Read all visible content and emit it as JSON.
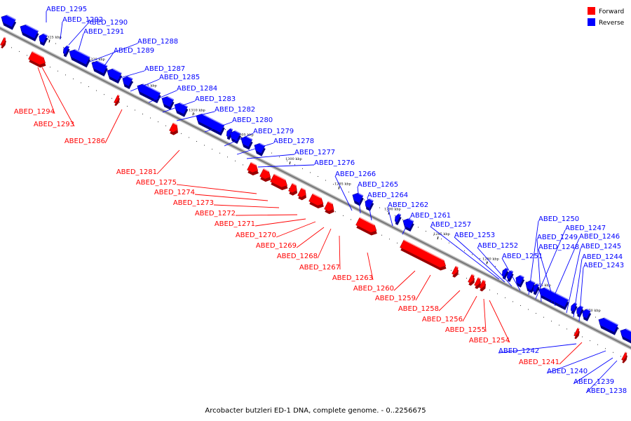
{
  "caption": "Arcobacter butzleri ED-1 DNA, complete genome. - 0..2256675",
  "legend": [
    {
      "label": "Forward",
      "color": "#ff0000"
    },
    {
      "label": "Reverse",
      "color": "#0000ff"
    }
  ],
  "colors": {
    "forward": "#ff0000",
    "reverse": "#0000ff",
    "backbone": "#777777",
    "tick": "#000000"
  },
  "ticks": [
    "1325 kbp",
    "1320 kbp",
    "1315 kbp",
    "1310 kbp",
    "1305 kbp",
    "1300 kbp",
    "1295 kbp",
    "1290 kbp",
    "1285 kbp",
    "1280 kbp",
    "1275 kbp",
    "1270 kbp"
  ],
  "reverse_labels": [
    "ABED_1295",
    "ABED_1292",
    "ABED_1290",
    "ABED_1291",
    "ABED_1288",
    "ABED_1289",
    "ABED_1287",
    "ABED_1285",
    "ABED_1284",
    "ABED_1283",
    "ABED_1282",
    "ABED_1280",
    "ABED_1279",
    "ABED_1278",
    "ABED_1277",
    "ABED_1276",
    "ABED_1266",
    "ABED_1265",
    "ABED_1264",
    "ABED_1262",
    "ABED_1261",
    "ABED_1257",
    "ABED_1253",
    "ABED_1252",
    "ABED_1251",
    "ABED_1250",
    "ABED_1247",
    "ABED_1249",
    "ABED_1246",
    "ABED_1248",
    "ABED_1245",
    "ABED_1244",
    "ABED_1243",
    "ABED_1242",
    "ABED_1240",
    "ABED_1239",
    "ABED_1238"
  ],
  "forward_labels": [
    "ABED_1294",
    "ABED_1293",
    "ABED_1286",
    "ABED_1281",
    "ABED_1275",
    "ABED_1274",
    "ABED_1273",
    "ABED_1272",
    "ABED_1271",
    "ABED_1270",
    "ABED_1269",
    "ABED_1268",
    "ABED_1267",
    "ABED_1263",
    "ABED_1260",
    "ABED_1259",
    "ABED_1258",
    "ABED_1256",
    "ABED_1255",
    "ABED_1254",
    "ABED_1241"
  ]
}
